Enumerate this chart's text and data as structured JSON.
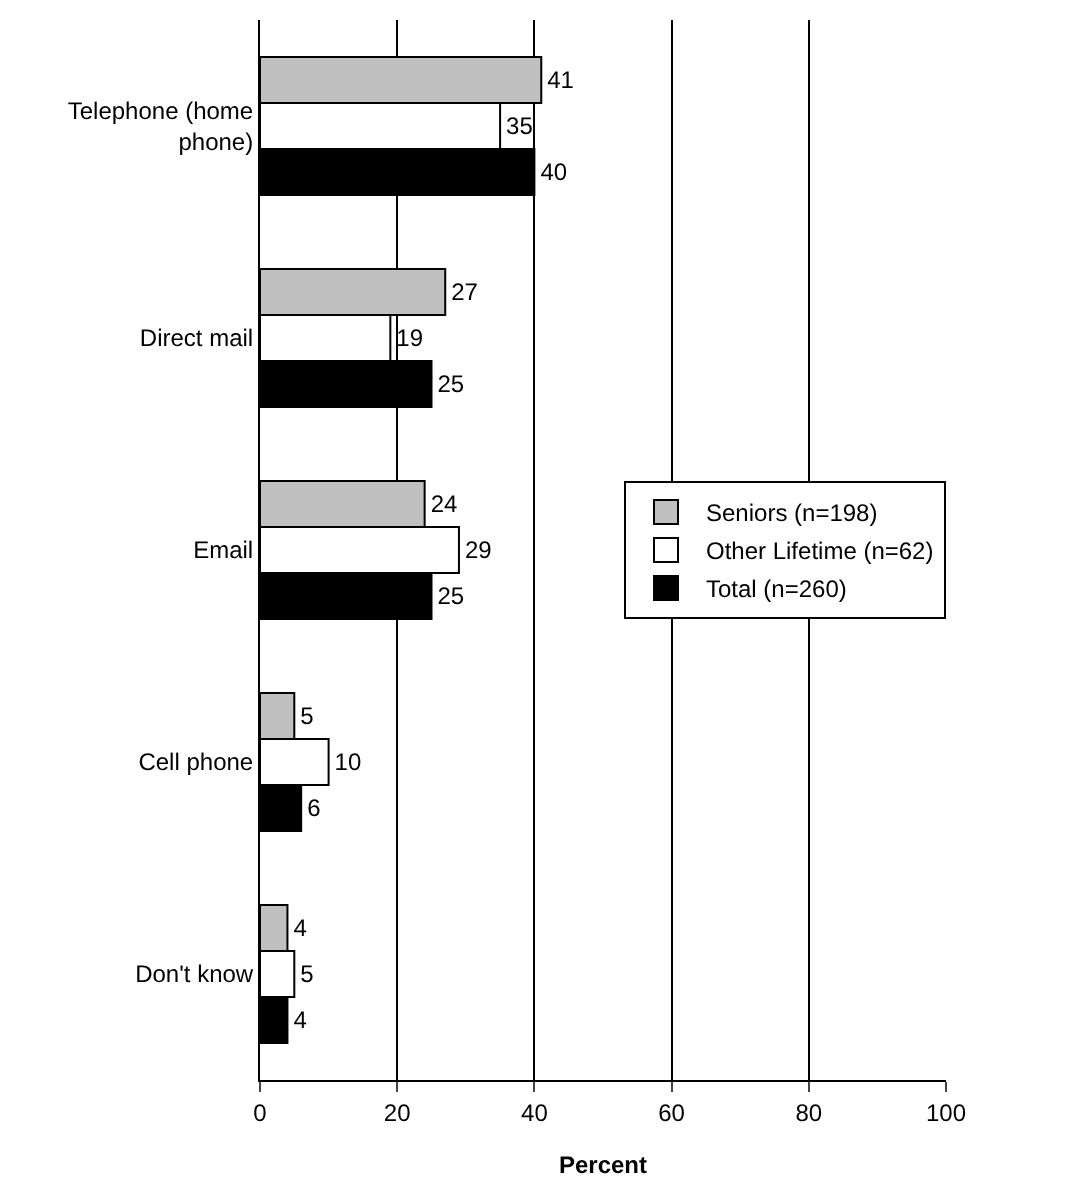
{
  "chart_data": {
    "type": "bar",
    "orientation": "horizontal",
    "xlabel": "Percent",
    "categories": [
      "Telephone (home phone)",
      "Direct mail",
      "Email",
      "Cell phone",
      "Don't know"
    ],
    "series": [
      {
        "name": "Seniors (n=198)",
        "color": "#c0c0c0",
        "values": [
          41,
          27,
          24,
          5,
          4
        ]
      },
      {
        "name": "Other Lifetime (n=62)",
        "color": "#ffffff",
        "values": [
          35,
          19,
          29,
          10,
          5
        ]
      },
      {
        "name": "Total (n=260)",
        "color": "#000000",
        "values": [
          40,
          25,
          25,
          6,
          4
        ]
      }
    ],
    "xlim": [
      0,
      100
    ],
    "xticks": [
      0,
      20,
      40,
      60,
      80,
      100
    ],
    "grid": "x",
    "legend": "right",
    "data_labels": true
  }
}
